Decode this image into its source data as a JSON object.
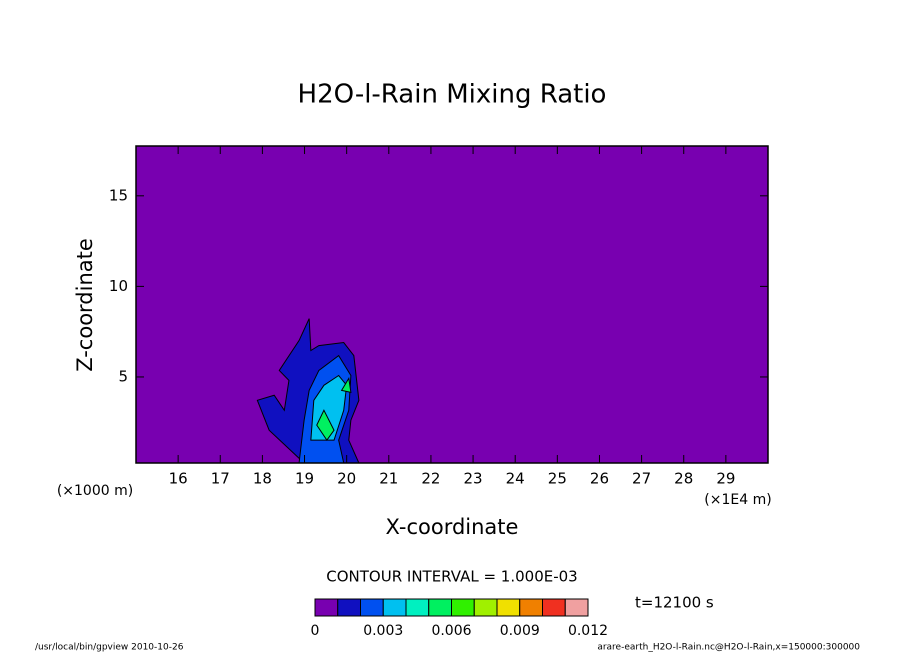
{
  "chart_data": {
    "type": "contour",
    "title": "H2O-l-Rain Mixing Ratio",
    "xlabel": "X-coordinate",
    "ylabel": "Z-coordinate",
    "x_unit_label": "(×1E4 m)",
    "y_unit_label": "(×1000 m)",
    "xlim": [
      15,
      30
    ],
    "ylim": [
      0.25,
      17.75
    ],
    "xticks": [
      16,
      17,
      18,
      19,
      20,
      21,
      22,
      23,
      24,
      25,
      26,
      27,
      28,
      29
    ],
    "yticks": [
      5,
      10,
      15
    ],
    "contour_interval_text": "CONTOUR INTERVAL = 1.000E-03",
    "levels": [
      0,
      0.001,
      0.002,
      0.003,
      0.004,
      0.005,
      0.006,
      0.007,
      0.008,
      0.009,
      0.01,
      0.011,
      0.012
    ],
    "colors": [
      "#7800b0",
      "#1010c0",
      "#0050f0",
      "#00c0f0",
      "#00f0c0",
      "#00f060",
      "#30f000",
      "#a0f000",
      "#f0e000",
      "#f08000",
      "#f03020",
      "#f0a0a0"
    ],
    "colorbar_ticks": [
      0,
      0.003,
      0.006,
      0.009,
      0.012
    ],
    "regions": [
      {
        "level": 0.001,
        "x": [
          18.99,
          18.16,
          17.88,
          18.28,
          18.52,
          18.63,
          18.4,
          18.87,
          19.11,
          19.15,
          19.34,
          19.93,
          20.17,
          20.29,
          20.1,
          20.05,
          20.29
        ],
        "z": [
          0.25,
          2.06,
          3.71,
          3.99,
          3.16,
          4.81,
          5.36,
          7.01,
          8.22,
          6.46,
          6.73,
          6.9,
          6.18,
          3.71,
          2.61,
          1.51,
          0.25
        ]
      },
      {
        "level": 0.002,
        "x": [
          18.87,
          18.99,
          19.11,
          19.34,
          19.81,
          20.1,
          20.05,
          19.81,
          19.93
        ],
        "z": [
          0.25,
          2.61,
          4.26,
          5.36,
          6.18,
          5.08,
          3.16,
          1.51,
          0.25
        ]
      },
      {
        "level": 0.003,
        "x": [
          19.15,
          19.22,
          19.46,
          19.81,
          20.0,
          19.93,
          19.7
        ],
        "z": [
          1.51,
          3.71,
          4.54,
          5.08,
          4.54,
          3.16,
          1.51
        ]
      },
      {
        "level": 0.005,
        "x": [
          19.29,
          19.46,
          19.7,
          19.53
        ],
        "z": [
          2.34,
          3.16,
          2.06,
          1.51
        ]
      },
      {
        "level": 0.005,
        "x": [
          19.88,
          20.05,
          20.1
        ],
        "z": [
          4.26,
          4.92,
          4.15
        ]
      }
    ],
    "time_label": "t=12100 s",
    "footer_left": "/usr/local/bin/gpview  2010-10-26",
    "footer_right": "arare-earth_H2O-l-Rain.nc@H2O-l-Rain,x=150000:300000"
  }
}
